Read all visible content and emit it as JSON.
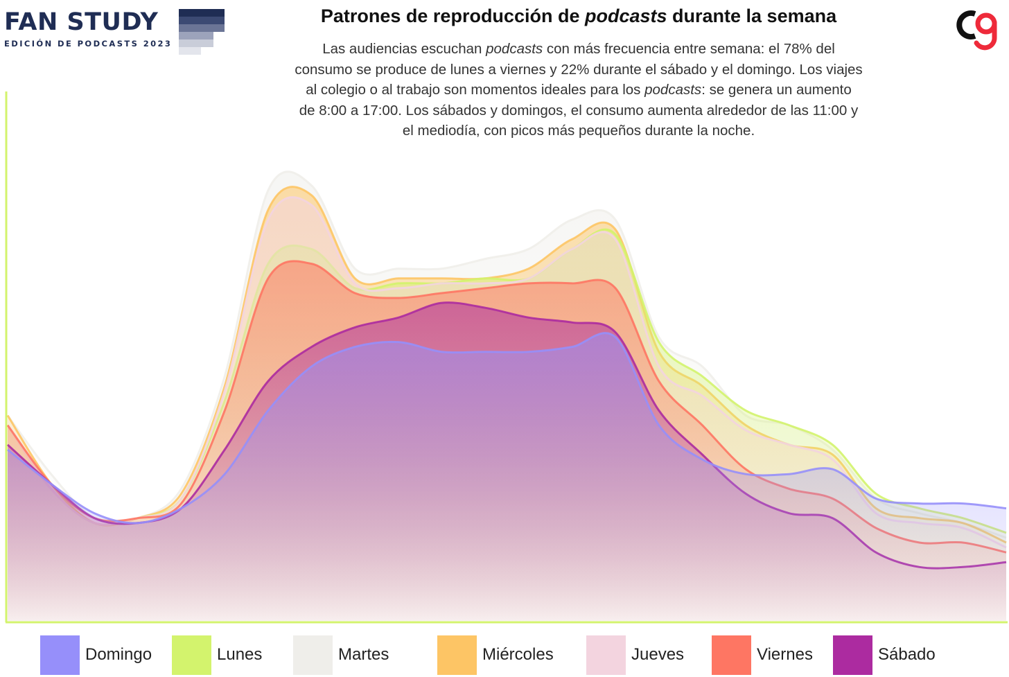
{
  "brand": {
    "title": "FAN STUDY",
    "subtitle": "EDICIÓN DE PODCASTS 2023",
    "step_colors": [
      "#1f2d54",
      "#3c4a73",
      "#6b7596",
      "#9ca3bb",
      "#c9cdd9",
      "#e3e5ec"
    ]
  },
  "header": {
    "title_pre": "Patrones de reproducción de ",
    "title_em": "podcasts",
    "title_post": " durante la semana",
    "subtitle_lines": [
      [
        "Las audiencias escuchan ",
        "podcasts",
        " con más frecuencia entre semana: el 78% del"
      ],
      [
        "consumo se produce de lunes a viernes y 22% durante el sábado y el domingo. Los viajes",
        "",
        ""
      ],
      [
        "al colegio o al trabajo son momentos ideales para los ",
        "podcasts",
        ": se genera un aumento"
      ],
      [
        "de 8:00 a 17:00. Los sábados y domingos, el consumo aumenta alrededor de las 11:00 y",
        "",
        ""
      ],
      [
        "el mediodía, con picos más pequeños durante la noche.",
        "",
        ""
      ]
    ]
  },
  "logo": {
    "name": "brand-logo",
    "dark": "#111111",
    "accent": "#ee2a3a"
  },
  "chart_data": {
    "type": "area",
    "title": "Patrones de reproducción de podcasts durante la semana",
    "xlabel": "",
    "ylabel": "",
    "x": [
      0,
      1,
      2,
      3,
      4,
      5,
      6,
      7,
      8,
      9,
      10,
      11,
      12,
      13,
      14,
      15,
      16,
      17,
      18,
      19,
      20,
      21,
      22,
      23
    ],
    "ylim": [
      0,
      100
    ],
    "grid": false,
    "legend_position": "bottom",
    "series": [
      {
        "name": "Martes",
        "color": "#efeeea",
        "values": [
          42,
          30,
          21,
          21,
          27,
          50,
          88,
          89,
          72,
          72,
          72,
          74,
          76,
          82,
          82,
          58,
          52,
          42,
          40,
          35,
          25,
          22,
          20,
          17
        ]
      },
      {
        "name": "Miércoles",
        "color": "#fdc565",
        "values": [
          42,
          28,
          20,
          21,
          26,
          48,
          84,
          87,
          70,
          70,
          70,
          70,
          72,
          78,
          80,
          55,
          48,
          40,
          36,
          34,
          23,
          21,
          20,
          16
        ]
      },
      {
        "name": "Lunes",
        "color": "#d3f36d",
        "values": [
          40,
          27,
          20,
          21,
          25,
          45,
          73,
          76,
          68,
          69,
          69,
          70,
          70,
          76,
          79,
          57,
          50,
          43,
          40,
          36,
          26,
          23,
          21,
          18
        ]
      },
      {
        "name": "Jueves",
        "color": "#f3d4df",
        "values": [
          40,
          27,
          20,
          21,
          25,
          47,
          82,
          85,
          69,
          68,
          69,
          69,
          70,
          76,
          78,
          52,
          46,
          39,
          36,
          33,
          22,
          20,
          19,
          15
        ]
      },
      {
        "name": "Viernes",
        "color": "#fe7663",
        "values": [
          40,
          28,
          21,
          21,
          24,
          43,
          70,
          73,
          67,
          66,
          67,
          68,
          69,
          69,
          68,
          49,
          40,
          31,
          27,
          25,
          19,
          16,
          16,
          14
        ]
      },
      {
        "name": "Sábado",
        "color": "#ac2ba0",
        "values": [
          36,
          28,
          21,
          20,
          23,
          35,
          49,
          56,
          60,
          62,
          65,
          64,
          62,
          61,
          59,
          43,
          34,
          26,
          22,
          21,
          14,
          11,
          11,
          12
        ]
      },
      {
        "name": "Domingo",
        "color": "#968ffa",
        "values": [
          35,
          28,
          22,
          20,
          23,
          30,
          43,
          52,
          56,
          57,
          55,
          55,
          55,
          56,
          58,
          40,
          33,
          30,
          30,
          31,
          25,
          24,
          24,
          23
        ]
      }
    ]
  },
  "legend": [
    {
      "label": "Domingo",
      "color": "#968ffa"
    },
    {
      "label": "Lunes",
      "color": "#d3f36d"
    },
    {
      "label": "Martes",
      "color": "#efeeea"
    },
    {
      "label": "Miércoles",
      "color": "#fdc565"
    },
    {
      "label": "Jueves",
      "color": "#f3d4df"
    },
    {
      "label": "Viernes",
      "color": "#fe7663"
    },
    {
      "label": "Sábado",
      "color": "#ac2ba0"
    }
  ],
  "colors": {
    "axis": "#d3f36d"
  }
}
